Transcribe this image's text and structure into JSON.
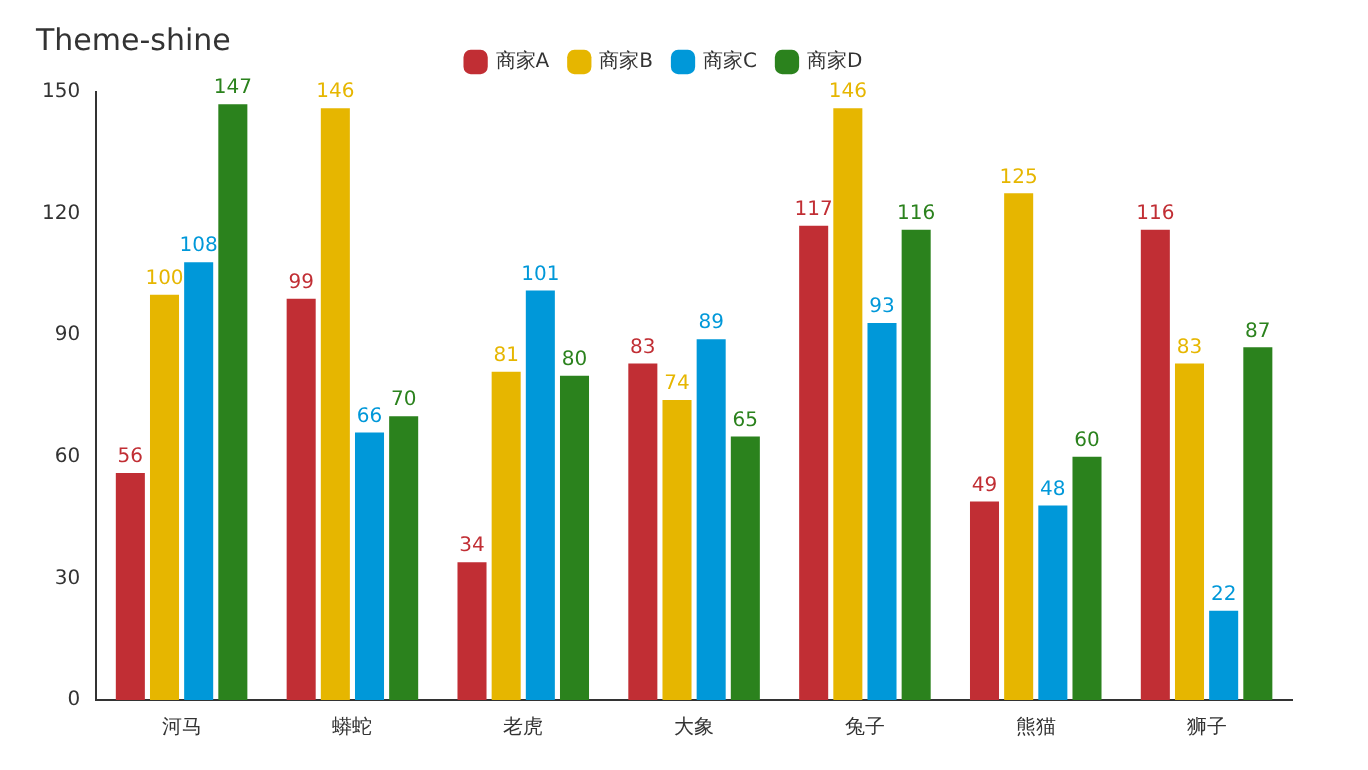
{
  "chart_data": {
    "type": "bar",
    "title": "Theme-shine",
    "categories": [
      "河马",
      "蟒蛇",
      "老虎",
      "大象",
      "兔子",
      "熊猫",
      "狮子"
    ],
    "series": [
      {
        "name": "商家A",
        "color": "#c12e34",
        "values": [
          56,
          99,
          34,
          83,
          117,
          49,
          116
        ]
      },
      {
        "name": "商家B",
        "color": "#e6b600",
        "values": [
          100,
          146,
          81,
          74,
          146,
          125,
          83
        ]
      },
      {
        "name": "商家C",
        "color": "#0098d9",
        "values": [
          108,
          66,
          101,
          89,
          93,
          48,
          22
        ]
      },
      {
        "name": "商家D",
        "color": "#2b821d",
        "values": [
          147,
          70,
          80,
          65,
          116,
          60,
          87
        ]
      }
    ],
    "ylim": [
      0,
      150
    ],
    "yticks": [
      0,
      30,
      60,
      90,
      120,
      150
    ],
    "grid": false,
    "legend": "top",
    "data_labels": true
  }
}
